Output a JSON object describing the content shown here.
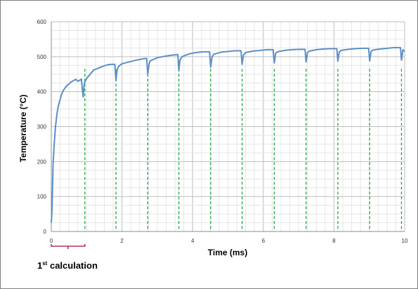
{
  "chart_data": {
    "type": "line",
    "xlabel": "Time (ms)",
    "ylabel": "Temperature (°C)",
    "xlim": [
      0,
      10
    ],
    "ylim": [
      0,
      600
    ],
    "x_ticks": [
      "0",
      "2",
      "4",
      "6",
      "8",
      "10"
    ],
    "y_ticks": [
      "0",
      "100",
      "200",
      "300",
      "400",
      "500",
      "600"
    ],
    "grid": true,
    "series": [
      {
        "color": "#5b8fc8",
        "x": [
          0.0,
          0.02,
          0.05,
          0.08,
          0.12,
          0.16,
          0.2,
          0.25,
          0.3,
          0.35,
          0.4,
          0.45,
          0.5,
          0.55,
          0.6,
          0.65,
          0.7,
          0.75,
          0.8,
          0.85,
          0.9,
          0.93,
          0.95,
          0.97,
          1.0,
          1.1,
          1.2,
          1.3,
          1.4,
          1.5,
          1.6,
          1.7,
          1.8,
          1.83,
          1.86,
          1.9,
          2.0,
          2.2,
          2.4,
          2.6,
          2.7,
          2.73,
          2.77,
          2.8,
          3.0,
          3.2,
          3.4,
          3.58,
          3.61,
          3.64,
          3.7,
          3.9,
          4.1,
          4.3,
          4.48,
          4.51,
          4.55,
          4.6,
          4.8,
          5.0,
          5.2,
          5.37,
          5.4,
          5.44,
          5.5,
          5.7,
          5.9,
          6.1,
          6.28,
          6.31,
          6.35,
          6.4,
          6.6,
          6.8,
          7.0,
          7.18,
          7.21,
          7.25,
          7.3,
          7.5,
          7.7,
          7.9,
          8.08,
          8.11,
          8.15,
          8.2,
          8.4,
          8.6,
          8.8,
          8.98,
          9.01,
          9.05,
          9.1,
          9.3,
          9.5,
          9.7,
          9.88,
          9.91,
          9.95,
          10.0
        ],
        "y": [
          25,
          60,
          190,
          245,
          300,
          335,
          360,
          378,
          395,
          405,
          412,
          418,
          422,
          427,
          430,
          433,
          435,
          430,
          432,
          436,
          385,
          420,
          428,
          432,
          438,
          450,
          462,
          466,
          470,
          474,
          477,
          478,
          478,
          432,
          460,
          472,
          480,
          485,
          490,
          494,
          495,
          450,
          480,
          488,
          497,
          501,
          504,
          506,
          460,
          490,
          500,
          508,
          512,
          514,
          514,
          470,
          500,
          507,
          513,
          515,
          517,
          517,
          478,
          505,
          512,
          516,
          518,
          520,
          520,
          482,
          510,
          514,
          518,
          520,
          521,
          521,
          485,
          512,
          516,
          520,
          522,
          523,
          523,
          487,
          514,
          518,
          521,
          523,
          524,
          524,
          488,
          515,
          519,
          522,
          524,
          526,
          526,
          490,
          520,
          515
        ]
      }
    ],
    "markers_x": [
      0.95,
      1.83,
      2.73,
      3.61,
      4.51,
      5.4,
      6.31,
      7.21,
      8.11,
      9.01,
      9.91
    ],
    "marker_color": "#1aaa3c",
    "bracket": {
      "x_range": [
        0,
        0.95
      ],
      "color": "#b03060",
      "label_main": "1",
      "label_sup": "st",
      "label_rest": " calculation"
    }
  }
}
